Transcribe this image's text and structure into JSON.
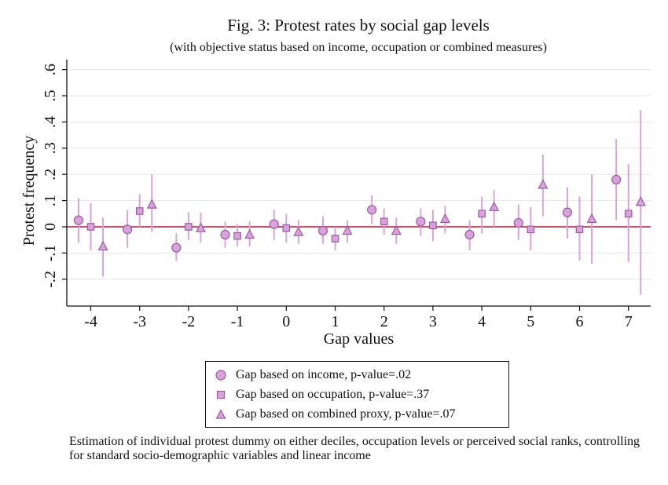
{
  "chart_data": {
    "type": "scatter",
    "title": "Fig. 3: Protest rates by social gap levels",
    "subtitle": "(with objective status based on income, occupation or combined measures)",
    "xlabel": "Gap values",
    "ylabel": "Protest frequency",
    "xlim": [
      -4.3,
      7.3
    ],
    "ylim": [
      -0.3,
      0.64
    ],
    "x_ticks": [
      -4,
      -3,
      -2,
      -1,
      0,
      1,
      2,
      3,
      4,
      5,
      6,
      7
    ],
    "y_ticks": [
      -0.2,
      -0.1,
      0,
      0.1,
      0.2,
      0.3,
      0.4,
      0.5,
      0.6
    ],
    "x_tick_labels": [
      "-4",
      "-3",
      "-2",
      "-1",
      "0",
      "1",
      "2",
      "3",
      "4",
      "5",
      "6",
      "7"
    ],
    "y_tick_labels": [
      "-.2",
      "-.1",
      "0",
      ".1",
      ".2",
      ".3",
      ".4",
      ".5",
      ".6"
    ],
    "grid": "horizontal",
    "reference_line": 0,
    "legend_position": "bottom",
    "series": [
      {
        "name": "Gap based on income, p-value=.02",
        "marker": "circle",
        "offset": -0.25,
        "points": [
          {
            "x": -4,
            "y": 0.025,
            "lo": -0.06,
            "hi": 0.11
          },
          {
            "x": -3,
            "y": -0.01,
            "lo": -0.08,
            "hi": 0.065
          },
          {
            "x": -2,
            "y": -0.08,
            "lo": -0.13,
            "hi": -0.025
          },
          {
            "x": -1,
            "y": -0.03,
            "lo": -0.08,
            "hi": 0.02
          },
          {
            "x": 0,
            "y": 0.01,
            "lo": -0.05,
            "hi": 0.065
          },
          {
            "x": 1,
            "y": -0.015,
            "lo": -0.065,
            "hi": 0.04
          },
          {
            "x": 2,
            "y": 0.065,
            "lo": 0.01,
            "hi": 0.12
          },
          {
            "x": 3,
            "y": 0.02,
            "lo": -0.035,
            "hi": 0.07
          },
          {
            "x": 4,
            "y": -0.03,
            "lo": -0.09,
            "hi": 0.025
          },
          {
            "x": 5,
            "y": 0.015,
            "lo": -0.05,
            "hi": 0.085
          },
          {
            "x": 6,
            "y": 0.055,
            "lo": -0.045,
            "hi": 0.15
          },
          {
            "x": 7,
            "y": 0.18,
            "lo": 0.025,
            "hi": 0.335
          }
        ]
      },
      {
        "name": "Gap based on occupation, p-value=.37",
        "marker": "square",
        "offset": 0,
        "points": [
          {
            "x": -4,
            "y": 0.0,
            "lo": -0.09,
            "hi": 0.09
          },
          {
            "x": -3,
            "y": 0.06,
            "lo": 0.0,
            "hi": 0.125
          },
          {
            "x": -2,
            "y": 0.0,
            "lo": -0.05,
            "hi": 0.055
          },
          {
            "x": -1,
            "y": -0.035,
            "lo": -0.075,
            "hi": 0.01
          },
          {
            "x": 0,
            "y": -0.005,
            "lo": -0.06,
            "hi": 0.05
          },
          {
            "x": 1,
            "y": -0.045,
            "lo": -0.09,
            "hi": 0.0
          },
          {
            "x": 2,
            "y": 0.02,
            "lo": -0.03,
            "hi": 0.07
          },
          {
            "x": 3,
            "y": 0.005,
            "lo": -0.055,
            "hi": 0.065
          },
          {
            "x": 4,
            "y": 0.05,
            "lo": -0.025,
            "hi": 0.115
          },
          {
            "x": 5,
            "y": -0.01,
            "lo": -0.09,
            "hi": 0.075
          },
          {
            "x": 6,
            "y": -0.01,
            "lo": -0.13,
            "hi": 0.115
          },
          {
            "x": 7,
            "y": 0.05,
            "lo": -0.135,
            "hi": 0.24
          }
        ]
      },
      {
        "name": "Gap based on combined proxy, p-value=.07",
        "marker": "triangle",
        "offset": 0.25,
        "points": [
          {
            "x": -4,
            "y": -0.075,
            "lo": -0.19,
            "hi": 0.035
          },
          {
            "x": -3,
            "y": 0.085,
            "lo": -0.02,
            "hi": 0.2
          },
          {
            "x": -2,
            "y": -0.005,
            "lo": -0.06,
            "hi": 0.055
          },
          {
            "x": -1,
            "y": -0.03,
            "lo": -0.075,
            "hi": 0.02
          },
          {
            "x": 0,
            "y": -0.02,
            "lo": -0.065,
            "hi": 0.025
          },
          {
            "x": 1,
            "y": -0.015,
            "lo": -0.06,
            "hi": 0.025
          },
          {
            "x": 2,
            "y": -0.015,
            "lo": -0.065,
            "hi": 0.035
          },
          {
            "x": 3,
            "y": 0.03,
            "lo": -0.025,
            "hi": 0.08
          },
          {
            "x": 4,
            "y": 0.075,
            "lo": 0.0,
            "hi": 0.14
          },
          {
            "x": 5,
            "y": 0.16,
            "lo": 0.04,
            "hi": 0.275
          },
          {
            "x": 6,
            "y": 0.03,
            "lo": -0.14,
            "hi": 0.2
          },
          {
            "x": 7,
            "y": 0.095,
            "lo": -0.26,
            "hi": 0.445
          }
        ]
      }
    ]
  },
  "legend": {
    "items": [
      "Gap based on income, p-value=.02",
      "Gap based on occupation, p-value=.37",
      "Gap based on combined proxy, p-value=.07"
    ]
  },
  "note": "Estimation of individual protest dummy on either deciles, occupation levels or perceived social ranks, controlling for standard socio-demographic variables and linear income",
  "colors": {
    "marker_fill": "#d7a3da",
    "marker_stroke": "#9b5aa3",
    "ci_line": "#d6a6d8",
    "reference_line": "#c8102e",
    "grid": "#e6e6e6",
    "axis": "#111111"
  }
}
